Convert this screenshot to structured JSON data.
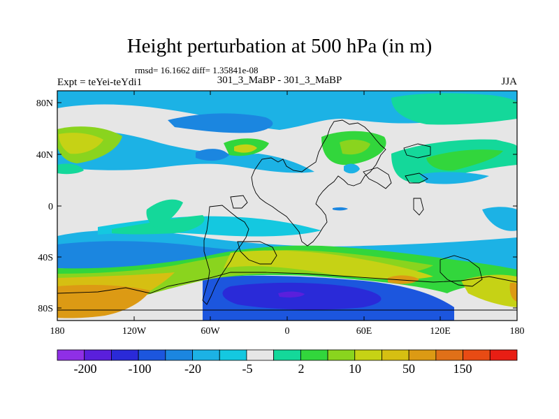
{
  "title": "Height perturbation at 500 hPa (in m)",
  "stats": "rmsd= 16.1662 diff= 1.35841e-08",
  "left_label": "Expt = teYei-teYdi1",
  "center_label": "301_3_MaBP - 301_3_MaBP",
  "right_label": "JJA",
  "map": {
    "projection": "cylindrical equidistant",
    "lon_range": [
      -180,
      180
    ],
    "lat_range": [
      -90,
      90
    ],
    "lat_ticks": [
      "80N",
      "40N",
      "0",
      "40S",
      "80S"
    ],
    "lon_ticks": [
      "180",
      "120W",
      "60W",
      "0",
      "60E",
      "120E",
      "180"
    ],
    "coastlines": "coarse-grid land outlines"
  },
  "colorbar": {
    "labels": [
      "-200",
      "-100",
      "-20",
      "-5",
      "2",
      "10",
      "50",
      "150"
    ],
    "colors": [
      "#8f2fe6",
      "#5a1fdc",
      "#2a2ad8",
      "#1c56de",
      "#1b86e0",
      "#1cb2e5",
      "#14c8e0",
      "#e6e6e6",
      "#14d89a",
      "#32d63c",
      "#8ad41e",
      "#c6d215",
      "#d6bf12",
      "#dc9a14",
      "#e07018",
      "#e84b14",
      "#e81e14"
    ]
  }
}
